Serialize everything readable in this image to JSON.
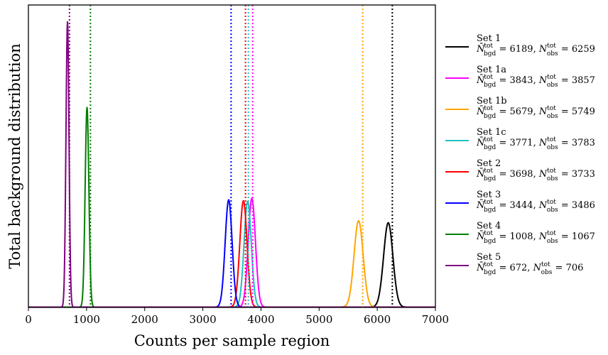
{
  "chart_data": {
    "type": "line",
    "xlabel": "Counts per sample region",
    "ylabel": "Total background distribution",
    "xlim": [
      0,
      7000
    ],
    "xticks": [
      0,
      1000,
      2000,
      3000,
      4000,
      5000,
      6000,
      7000
    ],
    "yticks": [],
    "grid": false,
    "legend_position": "right",
    "observed_line_style": "dotted",
    "series": [
      {
        "name": "Set 1",
        "stat_text": "N̄bgd^tot = 6189, Nobs^tot = 6259",
        "color": "#000000",
        "mean": 6189,
        "sigma": 80,
        "peak": 0.295,
        "observed": 6259
      },
      {
        "name": "Set 1a",
        "stat_text": "N̄bgd^tot = 3843, Nobs^tot = 3857",
        "color": "#ff00ff",
        "mean": 3843,
        "sigma": 62,
        "peak": 0.38,
        "observed": 3857
      },
      {
        "name": "Set 1b",
        "stat_text": "N̄bgd^tot = 5679, Nobs^tot = 5749",
        "color": "#ffa500",
        "mean": 5679,
        "sigma": 78,
        "peak": 0.302,
        "observed": 5749
      },
      {
        "name": "Set 1c",
        "stat_text": "N̄bgd^tot = 3771, Nobs^tot = 3783",
        "color": "#20c0c0",
        "mean": 3771,
        "sigma": 62,
        "peak": 0.37,
        "observed": 3783
      },
      {
        "name": "Set 2",
        "stat_text": "N̄bgd^tot = 3698, Nobs^tot = 3733",
        "color": "#ff0000",
        "mean": 3698,
        "sigma": 62,
        "peak": 0.372,
        "observed": 3733
      },
      {
        "name": "Set 3",
        "stat_text": "N̄bgd^tot = 3444, Nobs^tot = 3486",
        "color": "#0000ff",
        "mean": 3444,
        "sigma": 60,
        "peak": 0.375,
        "observed": 3486
      },
      {
        "name": "Set 4",
        "stat_text": "N̄bgd^tot = 1008, Nobs^tot = 1067",
        "color": "#008000",
        "mean": 1008,
        "sigma": 32,
        "peak": 0.7,
        "observed": 1067
      },
      {
        "name": "Set 5",
        "stat_text": "N̄bgd^tot = 672, Nobs^tot = 706",
        "color": "#800080",
        "mean": 672,
        "sigma": 26,
        "peak": 1.0,
        "observed": 706
      }
    ]
  }
}
